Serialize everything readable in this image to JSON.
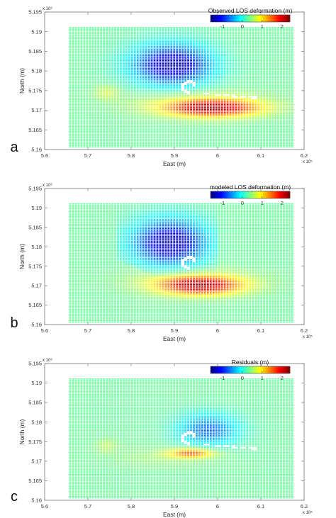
{
  "chart_data": [
    {
      "type": "heatmap",
      "panel": "a",
      "title": "Observed LOS deformation (m)",
      "xlabel": "East (m)",
      "ylabel": "North (m)",
      "xlim": [
        560000,
        620000
      ],
      "ylim": [
        5160000,
        5195000
      ],
      "x_multiplier": "x 10⁵",
      "y_multiplier": "x 10⁶",
      "x_ticks": [
        "5.6",
        "5.7",
        "5.8",
        "5.9",
        "6",
        "6.1",
        "6.2"
      ],
      "y_ticks": [
        "5.16",
        "5.165",
        "5.17",
        "5.175",
        "5.18",
        "5.185",
        "5.19",
        "5.195"
      ],
      "colorbar": {
        "ticks": [
          "-1",
          "0",
          "1",
          "2"
        ],
        "range": [
          -1.6,
          2.4
        ]
      },
      "features": [
        {
          "name": "subsidence",
          "x": 589500,
          "y": 5181500,
          "value": -1.4
        },
        {
          "name": "uplift",
          "x": 599000,
          "y": 5170500,
          "value": 2.0
        },
        {
          "name": "west-lobe",
          "x": 574500,
          "y": 5174500,
          "value": 0.7
        }
      ]
    },
    {
      "type": "heatmap",
      "panel": "b",
      "title": "modeled LOS deformation (m)",
      "xlabel": "East (m)",
      "ylabel": "North (m)",
      "xlim": [
        560000,
        620000
      ],
      "ylim": [
        5160000,
        5195000
      ],
      "x_multiplier": "x 10⁵",
      "y_multiplier": "x 10⁶",
      "x_ticks": [
        "5.6",
        "5.7",
        "5.8",
        "5.9",
        "6",
        "6.1",
        "6.2"
      ],
      "y_ticks": [
        "5.16",
        "5.165",
        "5.17",
        "5.175",
        "5.18",
        "5.185",
        "5.19",
        "5.195"
      ],
      "colorbar": {
        "ticks": [
          "-1",
          "0",
          "1",
          "2"
        ],
        "range": [
          -1.6,
          2.4
        ]
      },
      "features": [
        {
          "name": "subsidence",
          "x": 589000,
          "y": 5181000,
          "value": -1.4
        },
        {
          "name": "uplift",
          "x": 596000,
          "y": 5170000,
          "value": 2.0
        }
      ]
    },
    {
      "type": "heatmap",
      "panel": "c",
      "title": "Residuals (m)",
      "xlabel": "East (m)",
      "ylabel": "North (m)",
      "xlim": [
        560000,
        620000
      ],
      "ylim": [
        5160000,
        5195000
      ],
      "x_multiplier": "x 10⁵",
      "y_multiplier": "x 10⁶",
      "x_ticks": [
        "5.6",
        "5.7",
        "5.8",
        "5.9",
        "6",
        "6.1",
        "6.2"
      ],
      "y_ticks": [
        "5.16",
        "5.165",
        "5.17",
        "5.175",
        "5.18",
        "5.185",
        "5.19",
        "5.195"
      ],
      "colorbar": {
        "ticks": [
          "-1",
          "0",
          "1",
          "2"
        ],
        "range": [
          -1.6,
          2.4
        ]
      },
      "features": [
        {
          "name": "residual-low",
          "x": 598000,
          "y": 5178000,
          "value": -0.7
        },
        {
          "name": "residual-high",
          "x": 594000,
          "y": 5172000,
          "value": 1.5
        },
        {
          "name": "west-lobe",
          "x": 574500,
          "y": 5174000,
          "value": 0.6
        }
      ]
    }
  ],
  "panel_labels": [
    "a",
    "b",
    "c"
  ]
}
